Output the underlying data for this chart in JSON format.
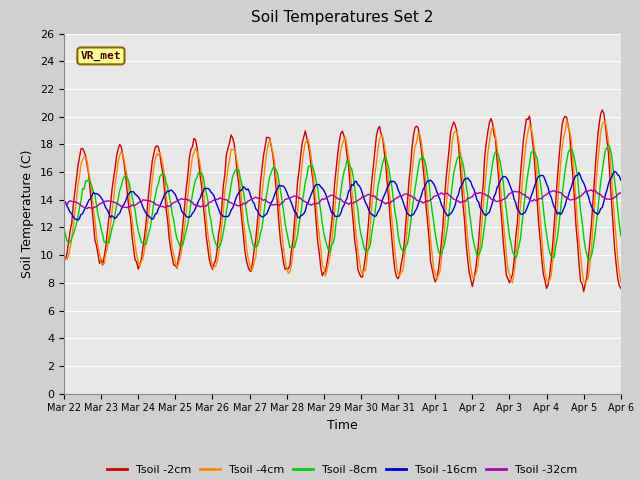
{
  "title": "Soil Temperatures Set 2",
  "xlabel": "Time",
  "ylabel": "Soil Temperature (C)",
  "ylim": [
    0,
    26
  ],
  "yticks": [
    0,
    2,
    4,
    6,
    8,
    10,
    12,
    14,
    16,
    18,
    20,
    22,
    24,
    26
  ],
  "annotation_text": "VR_met",
  "series_colors": [
    "#cc0000",
    "#ff8800",
    "#00cc00",
    "#0000cc",
    "#aa00aa"
  ],
  "series_labels": [
    "Tsoil -2cm",
    "Tsoil -4cm",
    "Tsoil -8cm",
    "Tsoil -16cm",
    "Tsoil -32cm"
  ],
  "fig_facecolor": "#d0d0d0",
  "ax_facecolor": "#e8e8e8",
  "grid_color": "#ffffff",
  "line_width": 1.0,
  "x_tick_labels": [
    "Mar 22",
    "Mar 23",
    "Mar 24",
    "Mar 25",
    "Mar 26",
    "Mar 27",
    "Mar 28",
    "Mar 29",
    "Mar 30",
    "Mar 31",
    "Apr 1",
    "Apr 2",
    "Apr 3",
    "Apr 4",
    "Apr 5",
    "Apr 6"
  ],
  "num_points": 361,
  "days": 15
}
